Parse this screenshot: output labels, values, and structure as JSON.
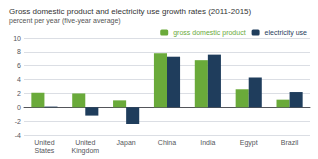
{
  "chart_data": {
    "type": "bar",
    "title": "Gross domestic product and electricity use growth rates (2011-2015)",
    "subtitle": "percent per year (five-year average)",
    "categories": [
      "United\nStates",
      "United\nKingdom",
      "Japan",
      "China",
      "India",
      "Egypt",
      "Brazil"
    ],
    "series": [
      {
        "name": "gross domestic product",
        "color": "#6aaa3a",
        "values": [
          2.1,
          2.0,
          1.0,
          7.8,
          6.8,
          2.6,
          1.1
        ]
      },
      {
        "name": "electricity use",
        "color": "#1f3d5c",
        "values": [
          0.1,
          -1.2,
          -2.4,
          7.3,
          7.6,
          4.3,
          2.2
        ]
      }
    ],
    "ylim": [
      -4,
      10
    ],
    "yticks": [
      -4,
      -2,
      0,
      2,
      4,
      6,
      8,
      10
    ],
    "grid": true,
    "legend": "upper right"
  }
}
